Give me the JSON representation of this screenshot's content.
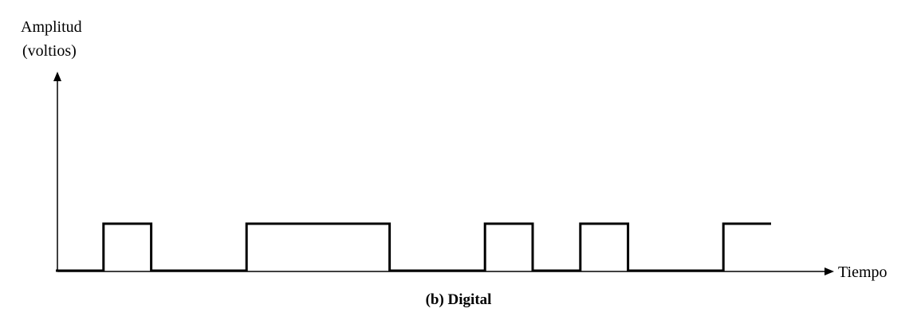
{
  "figure": {
    "y_axis_label_line1": "Amplitud",
    "y_axis_label_line2": "(voltios)",
    "x_axis_label": "Tiempo",
    "caption": "(b) Digital",
    "line_color": "#000000"
  },
  "signal": {
    "type": "digital-square-wave",
    "levels": [
      "low",
      "high"
    ],
    "segments": [
      {
        "level": "low",
        "duration": 1
      },
      {
        "level": "high",
        "duration": 1
      },
      {
        "level": "low",
        "duration": 2
      },
      {
        "level": "high",
        "duration": 3
      },
      {
        "level": "low",
        "duration": 2
      },
      {
        "level": "high",
        "duration": 1
      },
      {
        "level": "low",
        "duration": 1
      },
      {
        "level": "high",
        "duration": 1
      },
      {
        "level": "low",
        "duration": 2
      },
      {
        "level": "high",
        "duration": 1
      }
    ]
  }
}
